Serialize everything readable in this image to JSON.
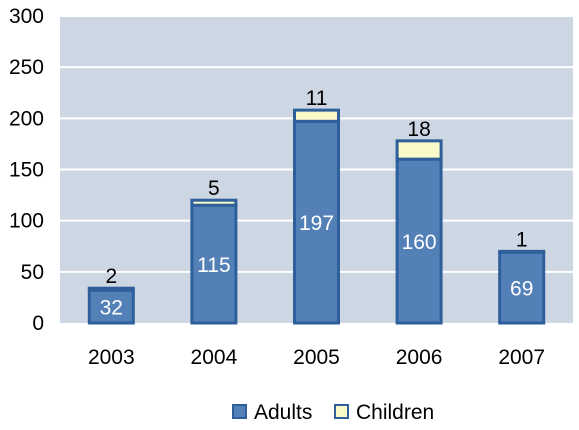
{
  "chart_data": {
    "type": "bar",
    "stacked": true,
    "categories": [
      "2003",
      "2004",
      "2005",
      "2006",
      "2007"
    ],
    "series": [
      {
        "name": "Adults",
        "values": [
          32,
          115,
          197,
          160,
          69
        ],
        "color": "#5480b8"
      },
      {
        "name": "Children",
        "values": [
          2,
          5,
          11,
          18,
          1
        ],
        "color": "#fafac8"
      }
    ],
    "ylim": [
      0,
      300
    ],
    "yticks": [
      0,
      50,
      100,
      150,
      200,
      250,
      300
    ],
    "grid": true,
    "legend": "bottom",
    "colors": {
      "plot_bg": "#cdd6e3",
      "grid": "#ffffff",
      "bar_border": "#2e5f9a"
    }
  }
}
